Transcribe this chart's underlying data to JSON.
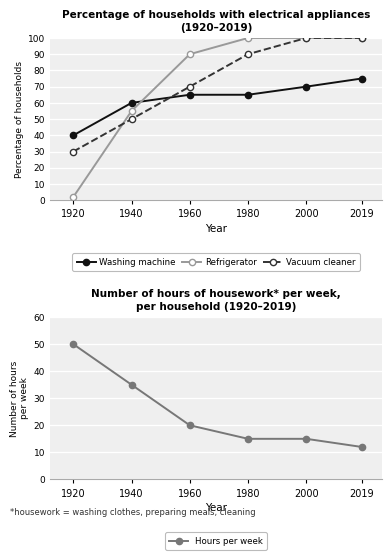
{
  "years": [
    1920,
    1940,
    1960,
    1980,
    2000,
    2019
  ],
  "washing_machine": [
    40,
    60,
    65,
    65,
    70,
    75
  ],
  "refrigerator": [
    2,
    55,
    90,
    100,
    100,
    100
  ],
  "vacuum_cleaner": [
    30,
    50,
    70,
    90,
    100,
    100
  ],
  "hours_per_week": [
    50,
    35,
    20,
    15,
    15,
    12
  ],
  "title1": "Percentage of households with electrical appliances\n(1920–2019)",
  "title2": "Number of hours of housework* per week,\nper household (1920–2019)",
  "ylabel1": "Percentage of households",
  "ylabel2": "Number of hours\nper week",
  "xlabel": "Year",
  "footnote": "*housework = washing clothes, preparing meals, cleaning",
  "ylim1": [
    0,
    100
  ],
  "ylim2": [
    0,
    60
  ],
  "yticks1": [
    0,
    10,
    20,
    30,
    40,
    50,
    60,
    70,
    80,
    90,
    100
  ],
  "yticks2": [
    0,
    10,
    20,
    30,
    40,
    50,
    60
  ],
  "line_color_wm": "#111111",
  "line_color_rf": "#999999",
  "line_color_vc": "#333333",
  "line_color_hw": "#777777",
  "bg_color": "#efefef"
}
